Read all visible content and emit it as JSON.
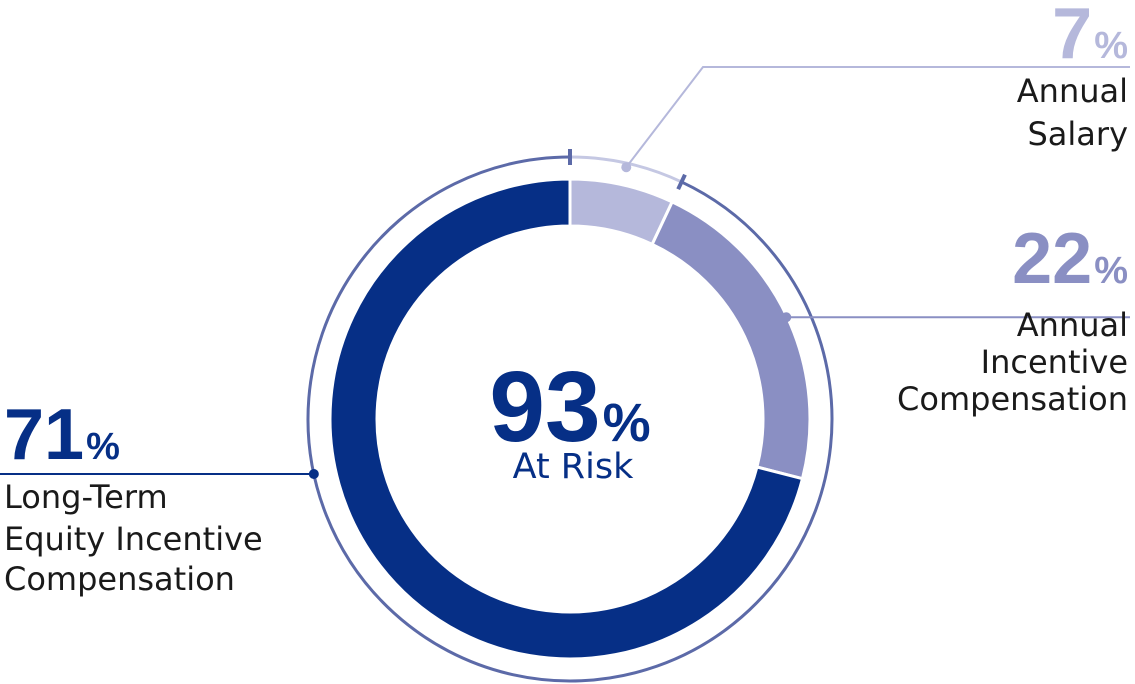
{
  "chart_data": {
    "type": "pie",
    "variant": "donut",
    "categories": [
      "Annual Salary",
      "Annual Incentive Compensation",
      "Long-Term Equity Incentive Compensation"
    ],
    "values": [
      7,
      22,
      71
    ],
    "percent_symbol": "%",
    "center": {
      "value": "93",
      "symbol": "%",
      "label": "At Risk"
    },
    "labels": [
      {
        "value": "7",
        "lines": [
          "Annual",
          "Salary"
        ]
      },
      {
        "value": "22",
        "lines": [
          "Annual",
          "Incentive",
          "Compensation"
        ]
      },
      {
        "value": "71",
        "lines": [
          "Long-Term",
          "Equity Incentive",
          "Compensation"
        ]
      }
    ],
    "at_risk_range": [
      7,
      100
    ],
    "colors": [
      "#b5b8db",
      "#8a8fc3",
      "#062f86"
    ],
    "label_colors": [
      "#b5b8db",
      "#8a8fc3",
      "#062f86"
    ],
    "text_color": "#1a1a1a",
    "ring_color": "#5c6aa8",
    "ring_light_color": "#c5c8e3",
    "center_color": "#062f86"
  }
}
